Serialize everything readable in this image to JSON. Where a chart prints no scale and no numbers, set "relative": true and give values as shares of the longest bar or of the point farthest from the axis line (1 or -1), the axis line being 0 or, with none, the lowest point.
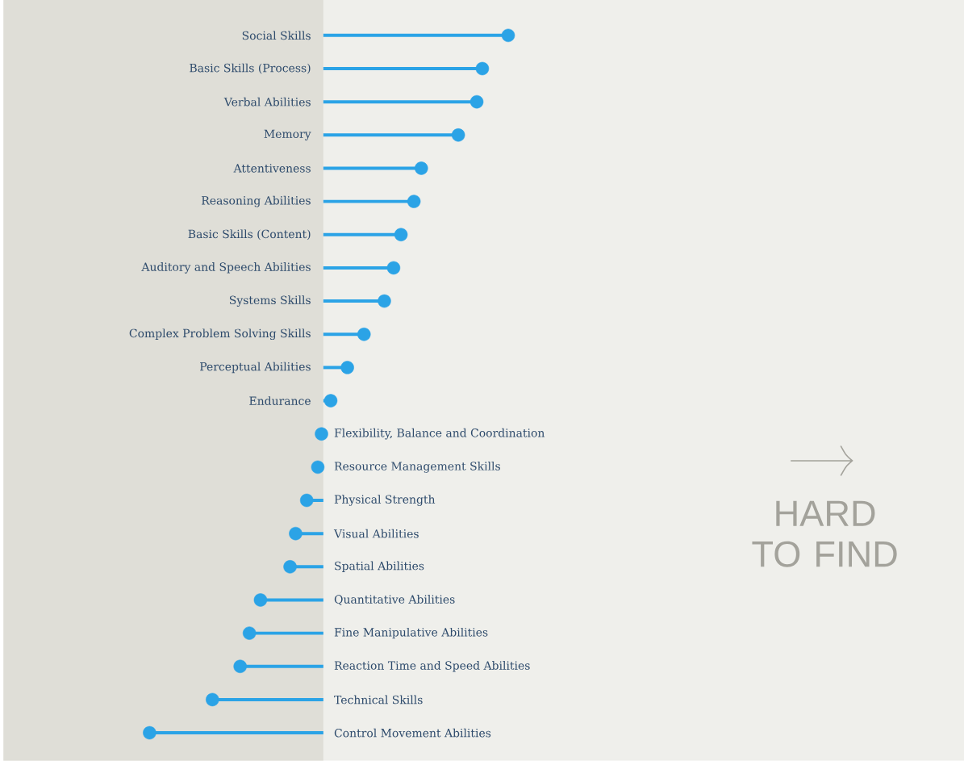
{
  "chart_data": {
    "type": "lollipop",
    "orientation": "horizontal",
    "relative": true,
    "marker": "circle",
    "color": "#2ba3e6",
    "categories": [
      "Social Skills",
      "Basic Skills (Process)",
      "Verbal Abilities",
      "Memory",
      "Attentiveness",
      "Reasoning Abilities",
      "Basic Skills (Content)",
      "Auditory and Speech Abilities",
      "Systems Skills",
      "Complex Problem Solving Skills",
      "Perceptual Abilities",
      "Endurance",
      "Flexibility, Balance and Coordination",
      "Resource Management Skills",
      "Physical Strength",
      "Visual Abilities",
      "Spatial Abilities",
      "Quantitative Abilities",
      "Fine Manipulative Abilities",
      "Reaction Time and Speed Abilities",
      "Technical Skills",
      "Control Movement Abilities"
    ],
    "values": [
      1,
      0.86,
      0.83,
      0.73,
      0.53,
      0.49,
      0.42,
      0.38,
      0.33,
      0.22,
      0.13,
      0.04,
      -0.01,
      -0.03,
      -0.09,
      -0.15,
      -0.18,
      -0.34,
      -0.4,
      -0.45,
      -0.6,
      -0.94
    ],
    "bands": [
      {
        "axis": "x",
        "from": -1.73,
        "to": 0,
        "color": "#dfded7"
      }
    ],
    "annotations": [
      "HARD TO FIND"
    ]
  }
}
